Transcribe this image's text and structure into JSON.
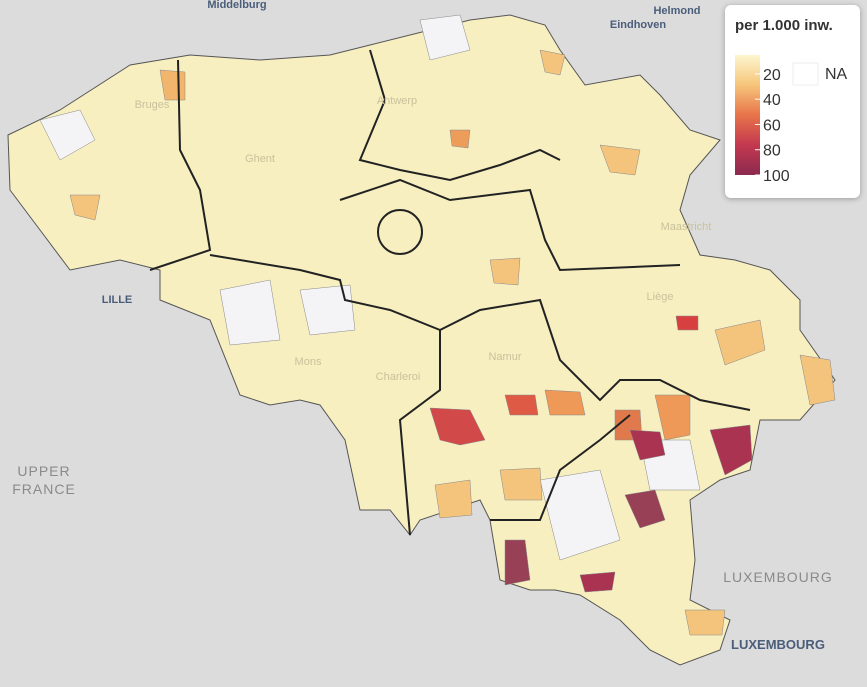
{
  "map": {
    "labels": [
      "Middelburg",
      "Helmond",
      "Eindhoven",
      "LILLE",
      "UPPER FRANCE",
      "LUXEMBOURG",
      "LUXEMBOURG",
      "Bruges",
      "Antwerp",
      "Ghent",
      "Mons",
      "Charleroi",
      "Namur",
      "Liège",
      "Maastricht"
    ]
  },
  "legend": {
    "title": "per 1.000 inw.",
    "range": [
      5,
      100
    ],
    "ticks": [
      20,
      40,
      60,
      80,
      100
    ],
    "na_label": "NA",
    "colors": [
      "#fdf6cf",
      "#f6c57a",
      "#e8744a",
      "#c3384f",
      "#8b2a4f"
    ]
  }
}
